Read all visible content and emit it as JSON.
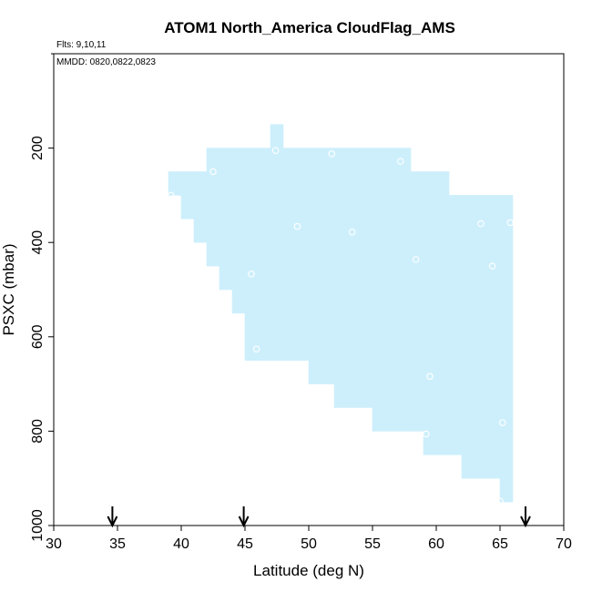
{
  "chart_data": {
    "type": "heatmap",
    "title": "ATOM1 North_America CloudFlag_AMS",
    "flights_note": "Flts: 9,10,11",
    "dates_note": "MMDD: 0820,0822,0823",
    "xlabel": "Latitude (deg N)",
    "ylabel": "PSXC (mbar)",
    "xlim": [
      30,
      70
    ],
    "ylim": [
      1000,
      0
    ],
    "x_ticks": [
      "30",
      "35",
      "40",
      "45",
      "50",
      "55",
      "60",
      "65",
      "70"
    ],
    "y_ticks": [
      "200",
      "400",
      "600",
      "800",
      "1000"
    ],
    "fill_color": "#cdeffc",
    "marker_color": "#ffffff",
    "arrow_color": "#000000",
    "cells": [
      {
        "lat": [
          47,
          48
        ],
        "p": [
          150,
          200
        ]
      },
      {
        "lat": [
          39,
          40
        ],
        "p": [
          250,
          300
        ]
      },
      {
        "lat": [
          40,
          41
        ],
        "p": [
          250,
          350
        ]
      },
      {
        "lat": [
          41,
          42
        ],
        "p": [
          250,
          400
        ]
      },
      {
        "lat": [
          42,
          43
        ],
        "p": [
          200,
          450
        ]
      },
      {
        "lat": [
          43,
          44
        ],
        "p": [
          200,
          500
        ]
      },
      {
        "lat": [
          44,
          45
        ],
        "p": [
          200,
          550
        ]
      },
      {
        "lat": [
          45,
          47
        ],
        "p": [
          200,
          650
        ]
      },
      {
        "lat": [
          47,
          48
        ],
        "p": [
          200,
          650
        ]
      },
      {
        "lat": [
          48,
          50
        ],
        "p": [
          200,
          650
        ]
      },
      {
        "lat": [
          50,
          52
        ],
        "p": [
          200,
          700
        ]
      },
      {
        "lat": [
          52,
          55
        ],
        "p": [
          200,
          750
        ]
      },
      {
        "lat": [
          55,
          58
        ],
        "p": [
          200,
          800
        ]
      },
      {
        "lat": [
          58,
          59
        ],
        "p": [
          250,
          800
        ]
      },
      {
        "lat": [
          59,
          61
        ],
        "p": [
          250,
          850
        ]
      },
      {
        "lat": [
          61,
          62
        ],
        "p": [
          300,
          850
        ]
      },
      {
        "lat": [
          62,
          65
        ],
        "p": [
          300,
          900
        ]
      },
      {
        "lat": [
          65,
          66
        ],
        "p": [
          300,
          950
        ]
      }
    ],
    "points": [
      {
        "lat": 39.2,
        "p": 300
      },
      {
        "lat": 42.5,
        "p": 250
      },
      {
        "lat": 47.4,
        "p": 205
      },
      {
        "lat": 51.8,
        "p": 212
      },
      {
        "lat": 57.2,
        "p": 228
      },
      {
        "lat": 49.1,
        "p": 366
      },
      {
        "lat": 53.4,
        "p": 378
      },
      {
        "lat": 63.5,
        "p": 360
      },
      {
        "lat": 65.8,
        "p": 358
      },
      {
        "lat": 58.4,
        "p": 436
      },
      {
        "lat": 64.4,
        "p": 450
      },
      {
        "lat": 45.5,
        "p": 467
      },
      {
        "lat": 45.9,
        "p": 626
      },
      {
        "lat": 59.5,
        "p": 684
      },
      {
        "lat": 59.2,
        "p": 806
      },
      {
        "lat": 65.2,
        "p": 782
      },
      {
        "lat": 65.0,
        "p": 948
      }
    ],
    "arrows_lat": [
      34.6,
      44.9,
      67.0
    ]
  }
}
